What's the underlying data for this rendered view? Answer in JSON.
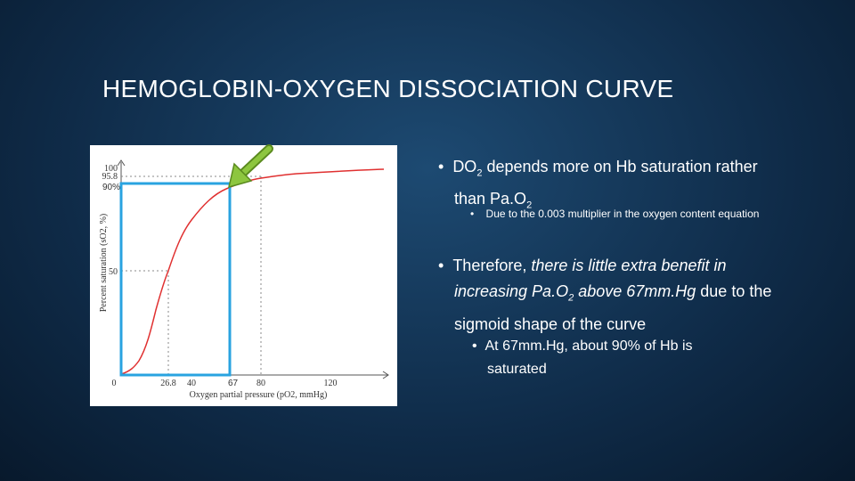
{
  "slide": {
    "title": "HEMOGLOBIN-OXYGEN DISSOCIATION CURVE",
    "figure": {
      "y_axis_label": "Percent saturation (sO2, %)",
      "x_axis_label": "Oxygen partial pressure (pO2, mmHg)",
      "y_tick_labels": [
        "100",
        "95.8",
        "50"
      ],
      "x_tick_labels": [
        "0",
        "26.8",
        "40",
        "80",
        "120"
      ],
      "overlay_y_label": "90%",
      "overlay_x_label": "67"
    },
    "bullets": [
      {
        "parts": [
          "DO",
          "2",
          " depends more on Hb saturation rather than Pa.O",
          "2"
        ],
        "sub": [
          "Due to the 0.003 multiplier in the oxygen content equation"
        ]
      },
      {
        "parts": [
          "Therefore, ",
          "there is little extra benefit in increasing Pa.O",
          "2",
          " above 67mm.Hg",
          " due to the sigmoid shape of the curve"
        ],
        "sub": [
          "At 67mm.Hg, about 90% of Hb is saturated"
        ]
      }
    ]
  }
}
